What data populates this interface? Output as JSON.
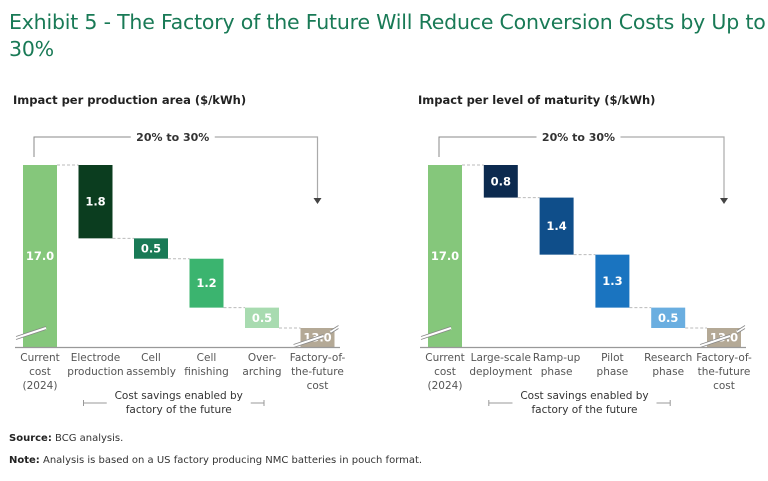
{
  "title": "Exhibit 5 - The Factory of the Future Will Reduce Conversion Costs by Up to 30%",
  "footer": {
    "source_label": "Source:",
    "source_text": " BCG analysis.",
    "note_label": "Note:",
    "note_text": " Analysis is based on a US factory producing NMC batteries in pouch format."
  },
  "chart_data": [
    {
      "type": "bar",
      "subtype": "waterfall",
      "title": "Impact per production area ($/kWh)",
      "bracket_label": "20% to 30%",
      "group_label": [
        "Cost savings enabled by",
        "factory of the future"
      ],
      "categories": [
        [
          "Current",
          "cost",
          "(2024)"
        ],
        [
          "Electrode",
          "production"
        ],
        [
          "Cell",
          "assembly"
        ],
        [
          "Cell",
          "finishing"
        ],
        [
          "Over-",
          "arching"
        ],
        [
          "Factory-of-",
          "the-future",
          "cost"
        ]
      ],
      "values": [
        17.0,
        -1.8,
        -0.5,
        -1.2,
        -0.5,
        13.0
      ],
      "labels": [
        "17.0",
        "1.8",
        "0.5",
        "1.2",
        "0.5",
        "13.0"
      ],
      "kinds": [
        "total",
        "delta",
        "delta",
        "delta",
        "delta",
        "total"
      ],
      "colors": [
        "#85c77b",
        "#0b3d1f",
        "#197a56",
        "#3bb46f",
        "#a8dbb0",
        "#b4a996"
      ],
      "axis_break": true
    },
    {
      "type": "bar",
      "subtype": "waterfall",
      "title": "Impact per level of maturity ($/kWh)",
      "bracket_label": "20% to 30%",
      "group_label": [
        "Cost savings enabled by",
        "factory of the future"
      ],
      "categories": [
        [
          "Current",
          "cost",
          "(2024)"
        ],
        [
          "Large-scale",
          "deployment"
        ],
        [
          "Ramp-up",
          "phase"
        ],
        [
          "Pilot",
          "phase"
        ],
        [
          "Research",
          "phase"
        ],
        [
          "Factory-of-",
          "the-future",
          "cost"
        ]
      ],
      "values": [
        17.0,
        -0.8,
        -1.4,
        -1.3,
        -0.5,
        13.0
      ],
      "labels": [
        "17.0",
        "0.8",
        "1.4",
        "1.3",
        "0.5",
        "13.0"
      ],
      "kinds": [
        "total",
        "delta",
        "delta",
        "delta",
        "delta",
        "total"
      ],
      "colors": [
        "#85c77b",
        "#0c2a4f",
        "#0f4e8a",
        "#1a74c0",
        "#6aaee0",
        "#b4a996"
      ],
      "axis_break": true
    }
  ]
}
